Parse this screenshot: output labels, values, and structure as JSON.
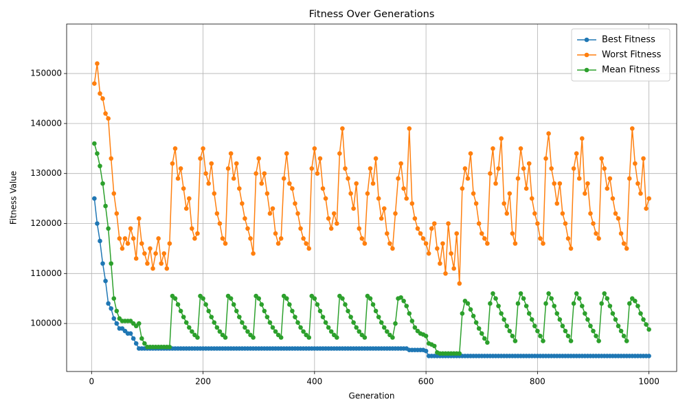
{
  "chart_data": {
    "type": "line",
    "title": "Fitness Over Generations",
    "x_label": "Generation",
    "y_label": "Fitness Value",
    "x": [
      5,
      10,
      15,
      20,
      25,
      30,
      35,
      40,
      45,
      50,
      55,
      60,
      65,
      70,
      75,
      80,
      85,
      90,
      95,
      100,
      105,
      110,
      115,
      120,
      125,
      130,
      135,
      140,
      145,
      150,
      155,
      160,
      165,
      170,
      175,
      180,
      185,
      190,
      195,
      200,
      205,
      210,
      215,
      220,
      225,
      230,
      235,
      240,
      245,
      250,
      255,
      260,
      265,
      270,
      275,
      280,
      285,
      290,
      295,
      300,
      305,
      310,
      315,
      320,
      325,
      330,
      335,
      340,
      345,
      350,
      355,
      360,
      365,
      370,
      375,
      380,
      385,
      390,
      395,
      400,
      405,
      410,
      415,
      420,
      425,
      430,
      435,
      440,
      445,
      450,
      455,
      460,
      465,
      470,
      475,
      480,
      485,
      490,
      495,
      500,
      505,
      510,
      515,
      520,
      525,
      530,
      535,
      540,
      545,
      550,
      555,
      560,
      565,
      570,
      575,
      580,
      585,
      590,
      595,
      600,
      605,
      610,
      615,
      620,
      625,
      630,
      635,
      640,
      645,
      650,
      655,
      660,
      665,
      670,
      675,
      680,
      685,
      690,
      695,
      700,
      705,
      710,
      715,
      720,
      725,
      730,
      735,
      740,
      745,
      750,
      755,
      760,
      765,
      770,
      775,
      780,
      785,
      790,
      795,
      800,
      805,
      810,
      815,
      820,
      825,
      830,
      835,
      840,
      845,
      850,
      855,
      860,
      865,
      870,
      875,
      880,
      885,
      890,
      895,
      900,
      905,
      910,
      915,
      920,
      925,
      930,
      935,
      940,
      945,
      950,
      955,
      960,
      965,
      970,
      975,
      980,
      985,
      990,
      995,
      1000
    ],
    "series": [
      {
        "name": "Best Fitness",
        "color": "#1f77b4",
        "values": [
          125000,
          120000,
          116500,
          112000,
          108500,
          104000,
          103000,
          101000,
          100000,
          99000,
          99000,
          98500,
          98000,
          98000,
          97000,
          96000,
          95000,
          95000,
          95000,
          95000,
          95000,
          95000,
          95000,
          95000,
          95000,
          95000,
          95000,
          95000,
          95000,
          95000,
          95000,
          95000,
          95000,
          95000,
          95000,
          95000,
          95000,
          95000,
          95000,
          95000,
          95000,
          95000,
          95000,
          95000,
          95000,
          95000,
          95000,
          95000,
          95000,
          95000,
          95000,
          95000,
          95000,
          95000,
          95000,
          95000,
          95000,
          95000,
          95000,
          95000,
          95000,
          95000,
          95000,
          95000,
          95000,
          95000,
          95000,
          95000,
          95000,
          95000,
          95000,
          95000,
          95000,
          95000,
          95000,
          95000,
          95000,
          95000,
          95000,
          95000,
          95000,
          95000,
          95000,
          95000,
          95000,
          95000,
          95000,
          95000,
          95000,
          95000,
          95000,
          95000,
          95000,
          95000,
          95000,
          95000,
          95000,
          95000,
          95000,
          95000,
          95000,
          95000,
          95000,
          95000,
          95000,
          95000,
          95000,
          95000,
          95000,
          95000,
          95000,
          95000,
          95000,
          94700,
          94700,
          94700,
          94700,
          94700,
          94700,
          94500,
          93500,
          93500,
          93500,
          93500,
          93500,
          93500,
          93500,
          93500,
          93500,
          93500,
          93500,
          93500,
          93500,
          93500,
          93500,
          93500,
          93500,
          93500,
          93500,
          93500,
          93500,
          93500,
          93500,
          93500,
          93500,
          93500,
          93500,
          93500,
          93500,
          93500,
          93500,
          93500,
          93500,
          93500,
          93500,
          93500,
          93500,
          93500,
          93500,
          93500,
          93500,
          93500,
          93500,
          93500,
          93500,
          93500,
          93500,
          93500,
          93500,
          93500,
          93500,
          93500,
          93500,
          93500,
          93500,
          93500,
          93500,
          93500,
          93500,
          93500,
          93500,
          93500,
          93500,
          93500,
          93500,
          93500,
          93500,
          93500,
          93500,
          93500,
          93500,
          93500,
          93500,
          93500,
          93500,
          93500,
          93500,
          93500,
          93500,
          93500
        ]
      },
      {
        "name": "Worst Fitness",
        "color": "#ff7f0e",
        "values": [
          148000,
          152000,
          146000,
          145000,
          142000,
          141000,
          133000,
          126000,
          122000,
          117000,
          115000,
          117000,
          116000,
          119000,
          117000,
          113000,
          121000,
          116000,
          114000,
          112000,
          115000,
          111000,
          114000,
          117000,
          112000,
          114000,
          111000,
          116000,
          132000,
          135000,
          129000,
          131000,
          127000,
          123000,
          125000,
          119000,
          117000,
          118000,
          133000,
          135000,
          130000,
          128000,
          132000,
          126000,
          122000,
          120000,
          117000,
          116000,
          131000,
          134000,
          129000,
          132000,
          127000,
          124000,
          121000,
          119000,
          117000,
          114000,
          130000,
          133000,
          128000,
          130000,
          126000,
          122000,
          123000,
          118000,
          116000,
          117000,
          129000,
          134000,
          128000,
          127000,
          124000,
          122000,
          119000,
          117000,
          116000,
          115000,
          131000,
          135000,
          130000,
          133000,
          127000,
          125000,
          121000,
          119000,
          122000,
          120000,
          134000,
          139000,
          131000,
          129000,
          126000,
          123000,
          128000,
          119000,
          117000,
          116000,
          126000,
          131000,
          128000,
          133000,
          125000,
          121000,
          123000,
          118000,
          116000,
          115000,
          122000,
          129000,
          132000,
          127000,
          125000,
          139000,
          124000,
          121000,
          119000,
          118000,
          117000,
          116000,
          114000,
          119000,
          120000,
          115000,
          112000,
          116000,
          110000,
          120000,
          114000,
          111000,
          118000,
          108000,
          127000,
          131000,
          129000,
          134000,
          126000,
          124000,
          120000,
          118000,
          117000,
          116000,
          130000,
          135000,
          128000,
          131000,
          137000,
          124000,
          122000,
          126000,
          118000,
          116000,
          129000,
          135000,
          131000,
          127000,
          132000,
          125000,
          122000,
          120000,
          117000,
          116000,
          133000,
          138000,
          131000,
          128000,
          124000,
          128000,
          122000,
          120000,
          117000,
          115000,
          131000,
          134000,
          129000,
          137000,
          126000,
          128000,
          122000,
          120000,
          118000,
          117000,
          133000,
          131000,
          127000,
          129000,
          125000,
          122000,
          121000,
          118000,
          116000,
          115000,
          129000,
          139000,
          132000,
          128000,
          126000,
          133000,
          123000,
          125000
        ]
      },
      {
        "name": "Mean Fitness",
        "color": "#2ca02c",
        "values": [
          136000,
          134000,
          131500,
          128000,
          123500,
          119000,
          112000,
          105000,
          102500,
          101000,
          100500,
          100500,
          100500,
          100500,
          100000,
          99500,
          100000,
          97000,
          96000,
          95300,
          95300,
          95300,
          95300,
          95300,
          95300,
          95300,
          95300,
          95300,
          105500,
          105000,
          103800,
          102500,
          101300,
          100200,
          99200,
          98400,
          97700,
          97200,
          105500,
          105000,
          103800,
          102500,
          101300,
          100200,
          99200,
          98400,
          97700,
          97200,
          105500,
          105000,
          103800,
          102500,
          101300,
          100200,
          99200,
          98400,
          97700,
          97200,
          105500,
          105000,
          103800,
          102500,
          101300,
          100200,
          99200,
          98400,
          97700,
          97200,
          105500,
          105000,
          103800,
          102500,
          101300,
          100200,
          99200,
          98400,
          97700,
          97200,
          105500,
          105000,
          103800,
          102500,
          101300,
          100200,
          99200,
          98400,
          97700,
          97200,
          105500,
          105000,
          103800,
          102500,
          101300,
          100200,
          99200,
          98400,
          97700,
          97200,
          105500,
          105000,
          103800,
          102500,
          101300,
          100200,
          99200,
          98400,
          97700,
          97200,
          100000,
          105000,
          105200,
          104500,
          103500,
          102000,
          100500,
          99200,
          98500,
          98000,
          97800,
          97500,
          96000,
          95800,
          95500,
          94200,
          94000,
          94000,
          94000,
          94000,
          94000,
          94000,
          94000,
          94000,
          102000,
          104500,
          104000,
          102800,
          101500,
          100200,
          99000,
          98000,
          97000,
          96200,
          104000,
          106000,
          105000,
          103500,
          102000,
          100800,
          99500,
          98500,
          97500,
          96500,
          104000,
          106000,
          105000,
          103500,
          102000,
          100800,
          99500,
          98500,
          97500,
          96500,
          104000,
          106000,
          105000,
          103500,
          102000,
          100800,
          99500,
          98500,
          97500,
          96500,
          104000,
          106000,
          105000,
          103500,
          102000,
          100800,
          99500,
          98500,
          97500,
          96500,
          104000,
          106000,
          105000,
          103500,
          102000,
          100800,
          99500,
          98500,
          97500,
          96500,
          104000,
          105000,
          104500,
          103500,
          102000,
          100800,
          99800,
          98800
        ]
      }
    ],
    "xlim": [
      -44.75,
      1049.75
    ],
    "xticks": [
      0,
      200,
      400,
      600,
      800,
      1000
    ],
    "ylim": [
      90400,
      159900
    ],
    "yticks": [
      100000,
      110000,
      120000,
      130000,
      140000,
      150000
    ],
    "grid": true,
    "legend": "upper-right",
    "marker": "circle"
  }
}
